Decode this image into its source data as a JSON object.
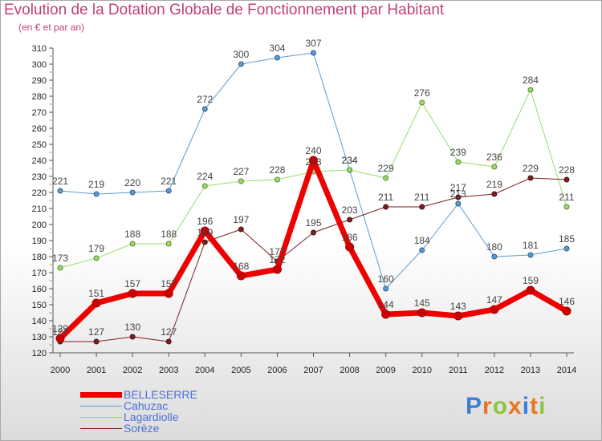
{
  "title": "Evolution de la Dotation Globale de Fonctionnement par Habitant",
  "subtitle": "(en € et par an)",
  "logo": {
    "letters": [
      "P",
      "r",
      "o",
      "x",
      "i",
      "t",
      "i"
    ],
    "colors": [
      "#3d7fd6",
      "#e87722",
      "#8cc63f",
      "#e87722",
      "#3d7fd6",
      "#e87722",
      "#8cc63f"
    ]
  },
  "chart_data": {
    "type": "line",
    "x": [
      "2000",
      "2001",
      "2002",
      "2003",
      "2004",
      "2005",
      "2006",
      "2007",
      "2008",
      "2009",
      "2010",
      "2011",
      "2012",
      "2013",
      "2014"
    ],
    "ylim": [
      120,
      310
    ],
    "yticks": [
      120,
      130,
      140,
      150,
      160,
      170,
      180,
      190,
      200,
      210,
      220,
      230,
      240,
      250,
      260,
      270,
      280,
      290,
      300,
      310
    ],
    "grid": false,
    "legend_position": "bottom-left",
    "series": [
      {
        "name": "Cahuzac",
        "color": "#5b9bd5",
        "width": 1,
        "values": [
          221,
          219,
          220,
          221,
          272,
          300,
          304,
          307,
          234,
          160,
          184,
          213,
          180,
          181,
          185
        ],
        "labels": [
          "221",
          "219",
          "220",
          "221",
          "272",
          "300",
          "304",
          "307",
          "234",
          "160",
          "184",
          "213",
          "180",
          "181",
          "185"
        ]
      },
      {
        "name": "Lagardiolle",
        "color": "#99dd66",
        "width": 1,
        "values": [
          173,
          179,
          188,
          188,
          224,
          227,
          228,
          233,
          234,
          229,
          276,
          239,
          236,
          284,
          211
        ],
        "labels": [
          "173",
          "179",
          "188",
          "188",
          "224",
          "227",
          "228",
          "233",
          "234",
          "229",
          "276",
          "239",
          "236",
          "284",
          "211"
        ]
      },
      {
        "name": "Sorèze",
        "color": "#7a1f1f",
        "width": 1,
        "values": [
          127,
          127,
          130,
          127,
          189,
          197,
          177,
          195,
          203,
          211,
          211,
          217,
          219,
          229,
          228
        ],
        "labels": [
          "127",
          "127",
          "130",
          "127",
          "189",
          "197",
          "177",
          "195",
          "203",
          "211",
          "211",
          "217",
          "219",
          "229",
          "228"
        ]
      },
      {
        "name": "BELLESERRE",
        "color": "#ee0000",
        "width": 7,
        "values": [
          129,
          151,
          157,
          157,
          196,
          168,
          172,
          240,
          186,
          144,
          145,
          143,
          147,
          159,
          146
        ],
        "labels": [
          "129",
          "151",
          "157",
          "157",
          "196",
          "168",
          "172",
          "240",
          "186",
          "144",
          "145",
          "143",
          "147",
          "159",
          "146"
        ]
      }
    ],
    "legend_order": [
      "BELLESERRE",
      "Cahuzac",
      "Lagardiolle",
      "Sorèze"
    ]
  }
}
